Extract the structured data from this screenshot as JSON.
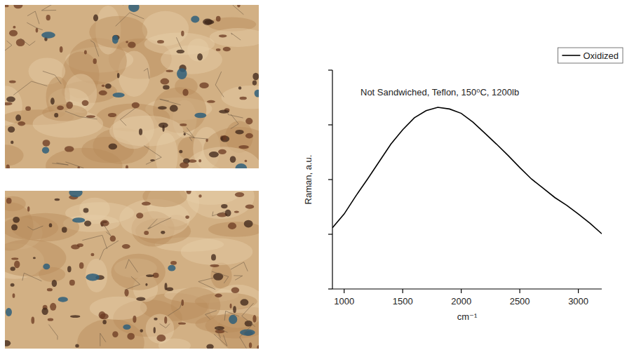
{
  "chart_data": {
    "type": "line",
    "title": "Not Sandwiched, Teflon, 150⁰C, 1200lb",
    "x_label": "cm⁻¹",
    "y_label": "Raman, a.u.",
    "x": [
      900,
      1000,
      1100,
      1200,
      1300,
      1400,
      1500,
      1600,
      1700,
      1800,
      1900,
      2000,
      2100,
      2200,
      2300,
      2400,
      2500,
      2600,
      2700,
      2800,
      2900,
      3000,
      3100,
      3200
    ],
    "series": [
      {
        "name": "Oxidized",
        "color": "#000000",
        "line_style": "solid",
        "values": [
          1.12,
          1.37,
          1.7,
          2.01,
          2.33,
          2.65,
          2.91,
          3.13,
          3.26,
          3.32,
          3.29,
          3.21,
          3.05,
          2.85,
          2.65,
          2.44,
          2.22,
          2.01,
          1.84,
          1.67,
          1.53,
          1.37,
          1.2,
          1.01
        ]
      }
    ],
    "xlim": [
      900,
      3200
    ],
    "xticks": [
      1000,
      1500,
      2000,
      2500,
      3000
    ],
    "ylim": [
      0,
      4
    ],
    "yticks": [
      0,
      1,
      2,
      3,
      4
    ],
    "tick_labels": "x",
    "legend": "top-right",
    "grid": false
  }
}
